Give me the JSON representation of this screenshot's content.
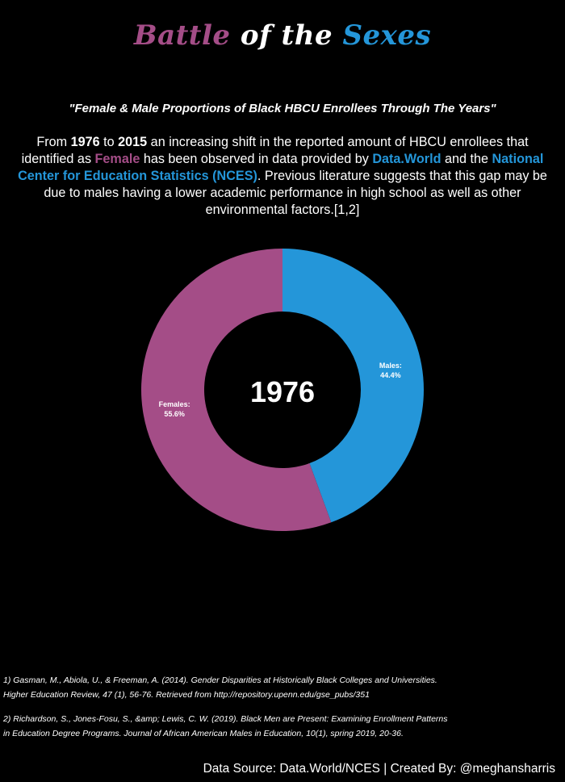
{
  "title": {
    "part1": "Battle",
    "part2": " of the ",
    "part3": "Sexes"
  },
  "subtitle": "\"Female & Male Proportions of Black HBCU Enrollees Through The Years\"",
  "intro": {
    "t1": "From ",
    "year_start": "1976",
    "t2": " to ",
    "year_end": "2015",
    "t3": " an increasing shift in the reported amount of HBCU enrollees that identified as ",
    "female_word": "Female",
    "t4": " has been observed in data provided by ",
    "source1": "Data.World",
    "t5": " and the ",
    "source2": "National Center for Education Statistics (NCES)",
    "t6": ". Previous literature suggests that this gap may be due to males having a lower academic performance in high school as well as other environmental factors.[1,2]"
  },
  "colors": {
    "female": "#a44d87",
    "male": "#2496d9",
    "background": "#000000",
    "text": "#ffffff"
  },
  "chart_data": {
    "type": "pie",
    "center_label": "1976",
    "categories": [
      "Males:",
      "Females:"
    ],
    "values": [
      44.4,
      55.6
    ],
    "value_labels": [
      "44.4%",
      "55.6%"
    ],
    "colors": [
      "#2496d9",
      "#a44d87"
    ],
    "start": "12 o'clock",
    "direction": "clockwise",
    "hole": "donut"
  },
  "references": [
    {
      "line1": "1) Gasman, M., Abiola, U., & Freeman, A. (2014). Gender Disparities at Historically Black Colleges and Universities.",
      "line2": " Higher Education Review, 47 (1), 56-76. Retrieved from http://repository.upenn.edu/gse_pubs/351"
    },
    {
      "line1": "2) Richardson, S., Jones-Fosu, S., &amp; Lewis, C. W. (2019). Black Men are Present: Examining Enrollment Patterns",
      "line2": "in Education Degree Programs. Journal of African American Males in Education, 10(1), spring 2019, 20-36."
    }
  ],
  "footer": "Data Source: Data.World/NCES | Created By: @meghansharris"
}
